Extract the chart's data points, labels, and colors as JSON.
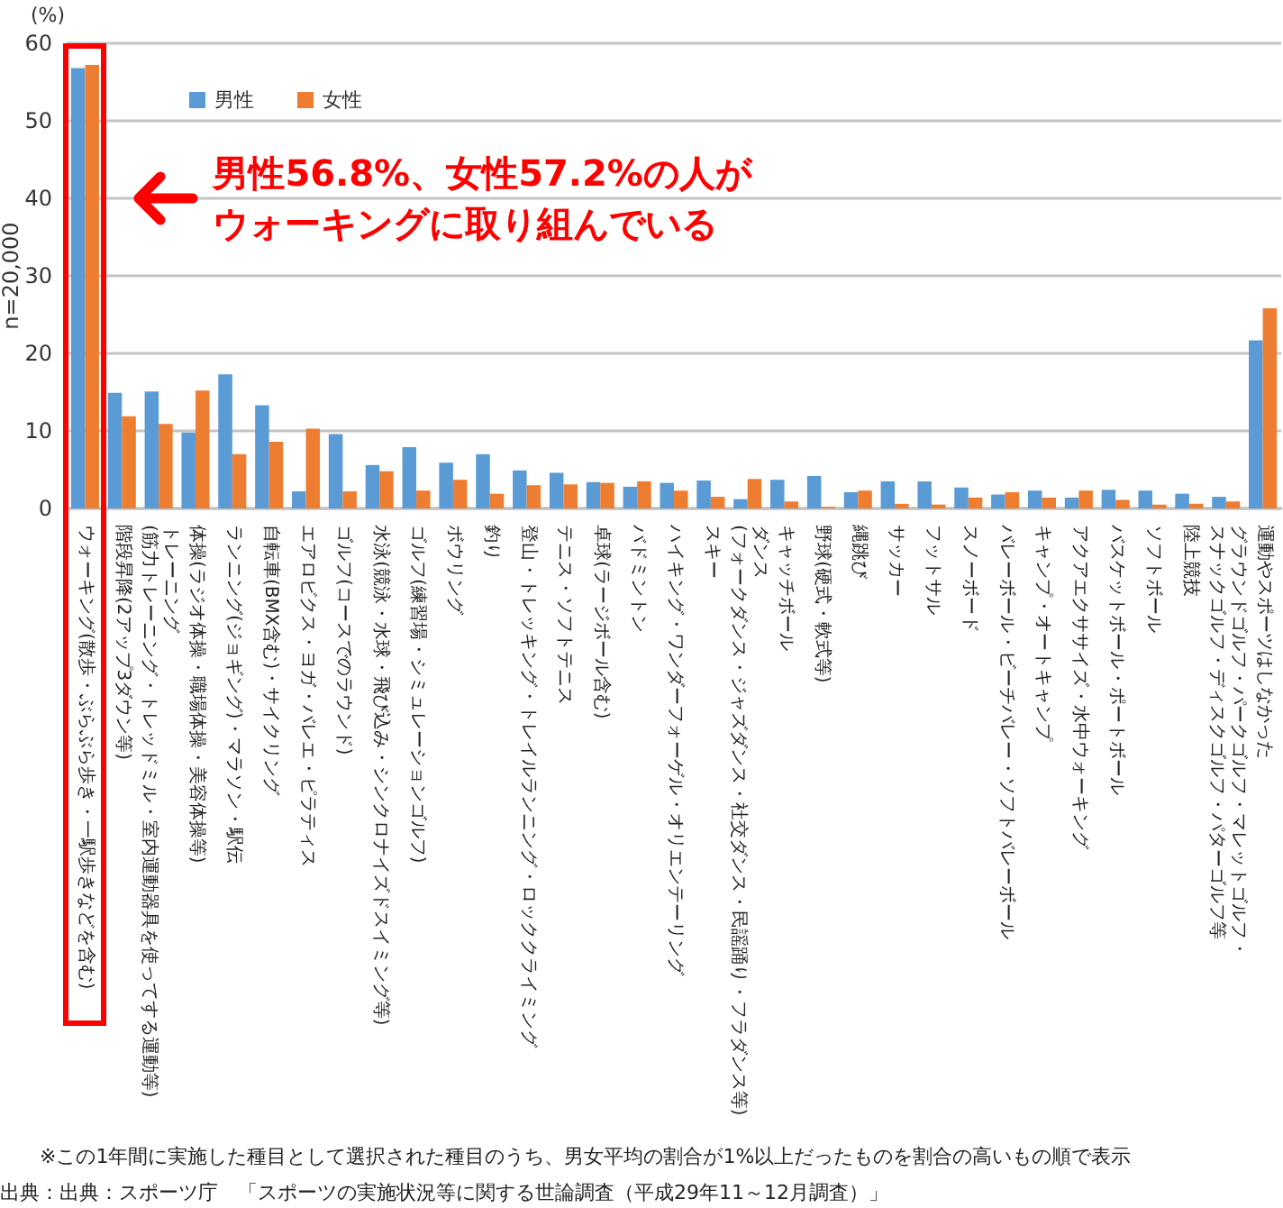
{
  "chart_data": {
    "type": "bar",
    "ylabel": "n=20,000",
    "categories": [
      "ウォーキング(散歩・ぶらぶら歩き・一駅歩きなどを含む)",
      "階段昇降(2アップ3ダウン等)",
      "トレーニング(筋力トレーニング・トレッドミル・室内運動器具を使ってする運動等)",
      "体操(ラジオ体操・職場体操・美容体操等)",
      "ランニング(ジョギング)・マラソン・駅伝",
      "自転車(BMX含む)・サイクリング",
      "エアロビクス・ヨガ・バレエ・ピラティス",
      "ゴルフ(コースでのラウンド)",
      "水泳(競泳・水球・飛び込み・シンクロナイズドスイミング等)",
      "ゴルフ(練習場・シミュレーションゴルフ)",
      "ボウリング",
      "釣り",
      "登山・トレッキング・トレイルランニング・ロッククライミング",
      "テニス・ソフトテニス",
      "卓球(ラージボール含む)",
      "バドミントン",
      "ハイキング・ワンダーフォーゲル・オリエンテーリング",
      "スキー",
      "ダンス(フォークダンス・ジャズダンス・社交ダンス・民謡踊り・フラダンス等)",
      "キャッチボール",
      "野球(硬式・軟式等)",
      "縄跳び",
      "サッカー",
      "フットサル",
      "スノーボード",
      "バレーボール・ビーチバレー・ソフトバレーボール",
      "キャンプ・オートキャンプ",
      "アクアエクササイズ・水中ウォーキング",
      "バスケットボール・ポートボール",
      "ソフトボール",
      "陸上競技",
      "グラウンドゴルフ・パークゴルフ・マレットゴルフ・スナックゴルフ・ディスクゴルフ・パターゴルフ等",
      "運動やスポーツはしなかった"
    ],
    "series": [
      {
        "name": "男性",
        "color": "#5b9bd5",
        "values": [
          56.8,
          14.9,
          15.1,
          9.8,
          17.3,
          13.3,
          2.2,
          9.6,
          5.6,
          7.9,
          5.9,
          7.0,
          4.9,
          4.6,
          3.4,
          2.8,
          3.3,
          3.6,
          1.2,
          3.7,
          4.2,
          2.1,
          3.5,
          3.5,
          2.7,
          1.8,
          2.3,
          1.4,
          2.4,
          2.3,
          1.9,
          1.5,
          21.7
        ]
      },
      {
        "name": "女性",
        "color": "#ed7d31",
        "values": [
          57.2,
          11.9,
          10.9,
          15.2,
          7.0,
          8.6,
          10.3,
          2.2,
          4.8,
          2.3,
          3.7,
          1.9,
          3.0,
          3.1,
          3.3,
          3.5,
          2.3,
          1.5,
          3.8,
          0.9,
          0.2,
          2.3,
          0.6,
          0.5,
          1.4,
          2.1,
          1.4,
          2.3,
          1.1,
          0.5,
          0.6,
          0.9,
          25.8
        ]
      }
    ],
    "ylim": [
      0,
      60
    ],
    "yticks": [
      0,
      10,
      20,
      30,
      40,
      50,
      60
    ],
    "grid": "y",
    "legend": "top left",
    "annotations": [
      "(%)",
      "男性56.8%、女性57.2%の人がウォーキングに取り組んでいる",
      "※この1年間に実施した種目として選択された種目のうち、男女平均の割合が1%以上だったものを割合の高いもの順で表示",
      "出典：出典：スポーツ庁　「スポーツの実施状況等に関する世論調査（平成29年11～12月調査）」"
    ]
  }
}
